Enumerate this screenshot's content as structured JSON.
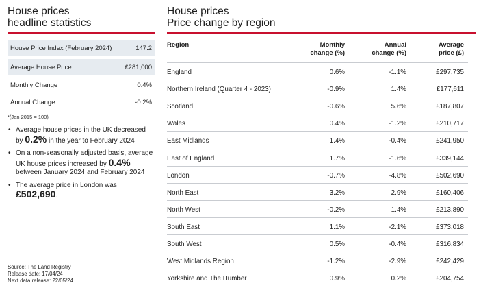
{
  "left": {
    "title_line1": "House prices",
    "title_line2": "headline statistics",
    "stats": [
      {
        "label": "House Price Index (February 2024)",
        "value": "147.2"
      },
      {
        "label": "Average House Price",
        "value": "£281,000"
      },
      {
        "label": "Monthly Change",
        "value": "0.4%"
      },
      {
        "label": "Annual Change",
        "value": "-0.2%"
      }
    ],
    "footnote": "*(Jan 2015 = 100)",
    "bullets": [
      {
        "pre": "Average house prices in the UK decreased by ",
        "big": "0.2%",
        "post": " in the year to February 2024"
      },
      {
        "pre": "On a non-seasonally adjusted basis, average UK house prices increased by ",
        "big": "0.4%",
        "post": " between January 2024 and February 2024"
      },
      {
        "pre": "The average price in London was ",
        "big": "£502,690",
        "post": "."
      }
    ],
    "source": "Source: The Land Registry",
    "release_date": "Release date: 17/04/24",
    "next_release": "Next data release: 22/05/24"
  },
  "right": {
    "title_line1": "House prices",
    "title_line2": "Price change by region",
    "headers": {
      "region": "Region",
      "monthly_l1": "Monthly",
      "monthly_l2": "change (%)",
      "annual_l1": "Annual",
      "annual_l2": "change (%)",
      "avg_l1": "Average",
      "avg_l2": "price (£)"
    },
    "rows": [
      {
        "region": "England",
        "monthly": "0.6%",
        "annual": "-1.1%",
        "avg": "£297,735"
      },
      {
        "region": "Northern Ireland (Quarter 4 - 2023)",
        "monthly": "-0.9%",
        "annual": "1.4%",
        "avg": "£177,611"
      },
      {
        "region": "Scotland",
        "monthly": "-0.6%",
        "annual": "5.6%",
        "avg": "£187,807"
      },
      {
        "region": "Wales",
        "monthly": "0.4%",
        "annual": "-1.2%",
        "avg": "£210,717"
      },
      {
        "region": "East Midlands",
        "monthly": "1.4%",
        "annual": "-0.4%",
        "avg": "£241,950"
      },
      {
        "region": "East of England",
        "monthly": "1.7%",
        "annual": "-1.6%",
        "avg": "£339,144"
      },
      {
        "region": "London",
        "monthly": "-0.7%",
        "annual": "-4.8%",
        "avg": "£502,690"
      },
      {
        "region": "North East",
        "monthly": "3.2%",
        "annual": "2.9%",
        "avg": "£160,406"
      },
      {
        "region": "North West",
        "monthly": "-0.2%",
        "annual": "1.4%",
        "avg": "£213,890"
      },
      {
        "region": "South East",
        "monthly": "1.1%",
        "annual": "-2.1%",
        "avg": "£373,018"
      },
      {
        "region": "South West",
        "monthly": "0.5%",
        "annual": "-0.4%",
        "avg": "£316,834"
      },
      {
        "region": "West Midlands Region",
        "monthly": "-1.2%",
        "annual": "-2.9%",
        "avg": "£242,429"
      },
      {
        "region": "Yorkshire and The Humber",
        "monthly": "0.9%",
        "annual": "0.2%",
        "avg": "£204,754"
      }
    ]
  },
  "colors": {
    "accent": "#c8102e",
    "shaded_row": "#e6ebf0",
    "divider": "#c9ccd1"
  }
}
